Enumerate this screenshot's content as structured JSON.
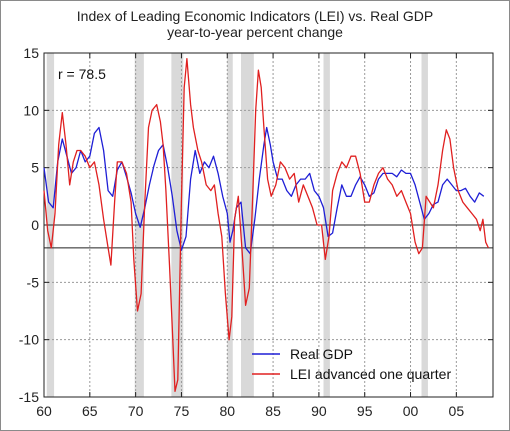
{
  "chart_data": {
    "type": "line",
    "title": "Index of Leading Economic Indicators (LEI) vs. Real GDP",
    "subtitle": "year-to-year percent change",
    "xlabel": "",
    "ylabel": "",
    "xlim": [
      1960,
      2009
    ],
    "ylim": [
      -15,
      15
    ],
    "x_ticks": [
      1960,
      1965,
      1970,
      1975,
      1980,
      1985,
      1990,
      1995,
      2000,
      2005
    ],
    "x_tick_labels": [
      "60",
      "65",
      "70",
      "75",
      "80",
      "85",
      "90",
      "95",
      "00",
      "05"
    ],
    "y_ticks": [
      -15,
      -10,
      -5,
      0,
      5,
      10,
      15
    ],
    "y_tick_labels": [
      "-15",
      "-10",
      "-5",
      "0",
      "5",
      "10",
      "15"
    ],
    "reference_lines": [
      0,
      -2
    ],
    "grid": true,
    "annotation": "r = 78.5",
    "legend_position": "bottom-center",
    "recessions": [
      [
        1960.3,
        1961.1
      ],
      [
        1969.9,
        1970.9
      ],
      [
        1973.9,
        1975.2
      ],
      [
        1980.0,
        1980.6
      ],
      [
        1981.5,
        1982.9
      ],
      [
        1990.5,
        1991.2
      ],
      [
        2001.2,
        2001.9
      ]
    ],
    "series": [
      {
        "name": "Real GDP",
        "color": "#1f1fd6",
        "points": [
          [
            1960.0,
            5.0
          ],
          [
            1960.5,
            2.0
          ],
          [
            1961.0,
            1.5
          ],
          [
            1961.5,
            5.5
          ],
          [
            1962.0,
            7.5
          ],
          [
            1962.5,
            6.0
          ],
          [
            1963.0,
            4.5
          ],
          [
            1963.5,
            5.0
          ],
          [
            1964.0,
            6.5
          ],
          [
            1964.5,
            5.5
          ],
          [
            1965.0,
            6.0
          ],
          [
            1965.5,
            8.0
          ],
          [
            1966.0,
            8.5
          ],
          [
            1966.5,
            6.5
          ],
          [
            1967.0,
            3.0
          ],
          [
            1967.5,
            2.5
          ],
          [
            1968.0,
            4.8
          ],
          [
            1968.5,
            5.5
          ],
          [
            1969.0,
            4.2
          ],
          [
            1969.5,
            2.8
          ],
          [
            1970.0,
            1.0
          ],
          [
            1970.5,
            -0.2
          ],
          [
            1971.0,
            1.5
          ],
          [
            1971.5,
            3.5
          ],
          [
            1972.0,
            5.2
          ],
          [
            1972.5,
            6.5
          ],
          [
            1973.0,
            7.0
          ],
          [
            1973.5,
            5.0
          ],
          [
            1974.0,
            2.5
          ],
          [
            1974.5,
            -0.5
          ],
          [
            1975.0,
            -2.2
          ],
          [
            1975.5,
            -1.0
          ],
          [
            1976.0,
            4.0
          ],
          [
            1976.5,
            6.5
          ],
          [
            1977.0,
            4.5
          ],
          [
            1977.5,
            5.5
          ],
          [
            1978.0,
            5.0
          ],
          [
            1978.5,
            6.0
          ],
          [
            1979.0,
            4.5
          ],
          [
            1979.5,
            2.5
          ],
          [
            1980.0,
            1.0
          ],
          [
            1980.3,
            -1.5
          ],
          [
            1980.6,
            -0.5
          ],
          [
            1981.0,
            1.5
          ],
          [
            1981.5,
            2.0
          ],
          [
            1982.0,
            -2.0
          ],
          [
            1982.5,
            -2.5
          ],
          [
            1983.0,
            0.5
          ],
          [
            1983.5,
            4.0
          ],
          [
            1984.0,
            7.0
          ],
          [
            1984.3,
            8.5
          ],
          [
            1984.7,
            7.0
          ],
          [
            1985.0,
            5.5
          ],
          [
            1985.5,
            4.0
          ],
          [
            1986.0,
            4.0
          ],
          [
            1986.5,
            3.0
          ],
          [
            1987.0,
            2.5
          ],
          [
            1987.5,
            3.5
          ],
          [
            1988.0,
            4.0
          ],
          [
            1988.5,
            4.0
          ],
          [
            1989.0,
            4.5
          ],
          [
            1989.5,
            3.0
          ],
          [
            1990.0,
            2.5
          ],
          [
            1990.5,
            1.5
          ],
          [
            1991.0,
            -1.0
          ],
          [
            1991.5,
            -0.7
          ],
          [
            1992.0,
            1.5
          ],
          [
            1992.5,
            3.5
          ],
          [
            1993.0,
            2.5
          ],
          [
            1993.5,
            2.5
          ],
          [
            1994.0,
            3.5
          ],
          [
            1994.5,
            4.2
          ],
          [
            1995.0,
            3.5
          ],
          [
            1995.5,
            2.5
          ],
          [
            1996.0,
            2.8
          ],
          [
            1996.5,
            4.0
          ],
          [
            1997.0,
            4.5
          ],
          [
            1997.5,
            4.5
          ],
          [
            1998.0,
            4.5
          ],
          [
            1998.5,
            4.2
          ],
          [
            1999.0,
            4.8
          ],
          [
            1999.5,
            4.5
          ],
          [
            2000.0,
            4.5
          ],
          [
            2000.5,
            3.5
          ],
          [
            2001.0,
            2.0
          ],
          [
            2001.5,
            0.5
          ],
          [
            2002.0,
            1.0
          ],
          [
            2002.5,
            1.8
          ],
          [
            2003.0,
            2.0
          ],
          [
            2003.5,
            3.5
          ],
          [
            2004.0,
            4.0
          ],
          [
            2004.5,
            3.5
          ],
          [
            2005.0,
            3.0
          ],
          [
            2005.5,
            3.0
          ],
          [
            2006.0,
            3.2
          ],
          [
            2006.5,
            2.5
          ],
          [
            2007.0,
            2.0
          ],
          [
            2007.5,
            2.8
          ],
          [
            2008.0,
            2.5
          ]
        ]
      },
      {
        "name": "LEI advanced one quarter",
        "color": "#e02020",
        "points": [
          [
            1960.0,
            3.0
          ],
          [
            1960.4,
            -0.5
          ],
          [
            1960.8,
            -2.0
          ],
          [
            1961.2,
            1.0
          ],
          [
            1961.6,
            7.0
          ],
          [
            1962.0,
            9.8
          ],
          [
            1962.4,
            7.0
          ],
          [
            1962.8,
            3.5
          ],
          [
            1963.2,
            5.5
          ],
          [
            1963.6,
            6.5
          ],
          [
            1964.0,
            6.5
          ],
          [
            1964.5,
            6.0
          ],
          [
            1965.0,
            5.0
          ],
          [
            1965.5,
            5.5
          ],
          [
            1966.0,
            3.5
          ],
          [
            1966.5,
            0.5
          ],
          [
            1967.0,
            -2.0
          ],
          [
            1967.3,
            -3.5
          ],
          [
            1967.7,
            2.0
          ],
          [
            1968.0,
            5.5
          ],
          [
            1968.5,
            5.5
          ],
          [
            1969.0,
            4.5
          ],
          [
            1969.5,
            2.0
          ],
          [
            1969.8,
            -3.0
          ],
          [
            1970.2,
            -7.5
          ],
          [
            1970.6,
            -6.0
          ],
          [
            1971.0,
            2.0
          ],
          [
            1971.4,
            8.5
          ],
          [
            1971.8,
            10.0
          ],
          [
            1972.3,
            10.5
          ],
          [
            1972.7,
            9.0
          ],
          [
            1973.0,
            7.0
          ],
          [
            1973.3,
            3.0
          ],
          [
            1973.7,
            -3.5
          ],
          [
            1974.0,
            -9.0
          ],
          [
            1974.3,
            -14.5
          ],
          [
            1974.6,
            -13.5
          ],
          [
            1975.0,
            2.0
          ],
          [
            1975.3,
            12.0
          ],
          [
            1975.6,
            14.5
          ],
          [
            1976.0,
            10.5
          ],
          [
            1976.3,
            8.5
          ],
          [
            1976.8,
            6.5
          ],
          [
            1977.2,
            5.5
          ],
          [
            1977.7,
            3.5
          ],
          [
            1978.2,
            3.0
          ],
          [
            1978.6,
            3.5
          ],
          [
            1979.0,
            1.0
          ],
          [
            1979.4,
            -1.0
          ],
          [
            1979.8,
            -6.0
          ],
          [
            1980.2,
            -10.0
          ],
          [
            1980.5,
            -8.0
          ],
          [
            1980.8,
            0.5
          ],
          [
            1981.2,
            2.5
          ],
          [
            1981.6,
            -2.0
          ],
          [
            1982.0,
            -7.0
          ],
          [
            1982.4,
            -5.5
          ],
          [
            1982.8,
            3.0
          ],
          [
            1983.1,
            10.0
          ],
          [
            1983.4,
            13.5
          ],
          [
            1983.7,
            12.0
          ],
          [
            1984.0,
            8.5
          ],
          [
            1984.4,
            4.0
          ],
          [
            1984.8,
            2.5
          ],
          [
            1985.3,
            3.5
          ],
          [
            1985.8,
            5.5
          ],
          [
            1986.3,
            5.0
          ],
          [
            1986.8,
            4.0
          ],
          [
            1987.3,
            4.5
          ],
          [
            1987.8,
            2.0
          ],
          [
            1988.3,
            3.5
          ],
          [
            1988.8,
            2.5
          ],
          [
            1989.3,
            1.5
          ],
          [
            1989.8,
            0.0
          ],
          [
            1990.3,
            0.0
          ],
          [
            1990.7,
            -3.0
          ],
          [
            1991.1,
            -1.0
          ],
          [
            1991.5,
            3.0
          ],
          [
            1992.0,
            4.5
          ],
          [
            1992.5,
            5.5
          ],
          [
            1993.0,
            5.0
          ],
          [
            1993.5,
            6.0
          ],
          [
            1994.0,
            6.0
          ],
          [
            1994.5,
            4.5
          ],
          [
            1995.0,
            2.0
          ],
          [
            1995.5,
            2.0
          ],
          [
            1996.0,
            3.5
          ],
          [
            1996.5,
            4.5
          ],
          [
            1997.0,
            5.0
          ],
          [
            1997.5,
            4.0
          ],
          [
            1998.0,
            3.5
          ],
          [
            1998.5,
            2.5
          ],
          [
            1999.0,
            3.0
          ],
          [
            1999.5,
            2.0
          ],
          [
            2000.0,
            1.0
          ],
          [
            2000.5,
            -1.5
          ],
          [
            2000.9,
            -2.5
          ],
          [
            2001.3,
            -2.0
          ],
          [
            2001.7,
            2.5
          ],
          [
            2002.1,
            2.0
          ],
          [
            2002.5,
            1.5
          ],
          [
            2003.0,
            3.5
          ],
          [
            2003.5,
            6.5
          ],
          [
            2003.9,
            8.3
          ],
          [
            2004.3,
            7.5
          ],
          [
            2004.7,
            5.0
          ],
          [
            2005.2,
            3.0
          ],
          [
            2005.7,
            2.0
          ],
          [
            2006.2,
            1.5
          ],
          [
            2006.7,
            1.0
          ],
          [
            2007.2,
            0.5
          ],
          [
            2007.6,
            -0.5
          ],
          [
            2007.9,
            0.5
          ],
          [
            2008.2,
            -1.5
          ],
          [
            2008.5,
            -2.0
          ]
        ]
      }
    ]
  }
}
